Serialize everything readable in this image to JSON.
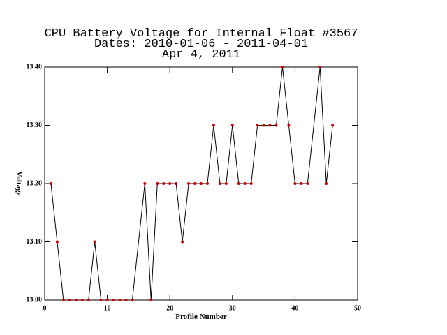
{
  "chart_data": {
    "type": "line",
    "title": [
      "CPU Battery Voltage for Internal Float #3567",
      "Dates:  2010-01-06 -  2011-04-01",
      "Apr  4, 2011"
    ],
    "x_label": "Profile Number",
    "y_label": "Voltage",
    "x": [
      1,
      2,
      3,
      4,
      5,
      6,
      7,
      8,
      9,
      10,
      11,
      12,
      13,
      14,
      16,
      17,
      18,
      19,
      20,
      21,
      22,
      23,
      24,
      25,
      26,
      27,
      28,
      29,
      30,
      31,
      32,
      33,
      34,
      35,
      36,
      37,
      38,
      39,
      40,
      41,
      42,
      44,
      45,
      46
    ],
    "y": [
      13.2,
      13.1,
      13.0,
      13.0,
      13.0,
      13.0,
      13.0,
      13.1,
      13.0,
      13.0,
      13.0,
      13.0,
      13.0,
      13.0,
      13.2,
      13.0,
      13.2,
      13.2,
      13.2,
      13.2,
      13.1,
      13.2,
      13.2,
      13.2,
      13.2,
      13.3,
      13.2,
      13.2,
      13.3,
      13.2,
      13.2,
      13.2,
      13.3,
      13.3,
      13.3,
      13.3,
      13.4,
      13.3,
      13.2,
      13.2,
      13.2,
      13.4,
      13.2,
      13.3
    ],
    "line_color": "#000000",
    "marker_color": "#cc0000",
    "xlim": [
      0,
      50
    ],
    "xticks": [
      0,
      10,
      20,
      30,
      40,
      50
    ],
    "ylim": [
      13.0,
      13.4
    ],
    "yticks": [
      {
        "value": 13.0,
        "label": "13.00"
      },
      {
        "value": 13.1,
        "label": "13.10"
      },
      {
        "value": 13.2,
        "label": "13.20"
      },
      {
        "value": 13.3,
        "label": "13.30"
      },
      {
        "value": 13.4,
        "label": "13.40"
      }
    ]
  }
}
